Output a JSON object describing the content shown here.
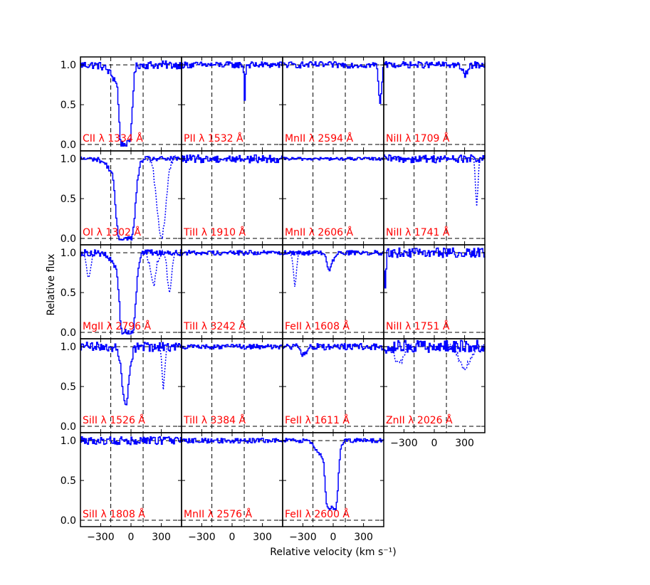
{
  "chart_data": {
    "type": "line",
    "grid": {
      "rows": 5,
      "cols": 4
    },
    "xlabel": "Relative velocity (km s⁻¹)",
    "ylabel": "Relative flux",
    "xlim": [
      -500,
      500
    ],
    "ylim": [
      -0.08,
      1.1
    ],
    "yticks": [
      0.0,
      0.5,
      1.0
    ],
    "ytick_labels": [
      "0.0",
      "0.5",
      "1.0"
    ],
    "xticks": [
      -300,
      0,
      300
    ],
    "xtick_labels": [
      "−300",
      "0",
      "300"
    ],
    "vlines": [
      -200,
      120
    ],
    "colors": {
      "spectrum": "#0000ff",
      "label": "#ff0000",
      "guide": "#000000"
    },
    "panels": [
      {
        "row": 0,
        "col": 0,
        "ion": "CII",
        "wave": "1334",
        "shape": "strong",
        "center": -60,
        "width": 40,
        "depth": 1.0,
        "noise": 0.05,
        "blend": []
      },
      {
        "row": 0,
        "col": 1,
        "ion": "PII",
        "wave": "1532",
        "shape": "narrow",
        "center": 120,
        "width": 8,
        "depth": 0.45,
        "noise": 0.04,
        "blend": []
      },
      {
        "row": 0,
        "col": 2,
        "ion": "MnII",
        "wave": "2594",
        "shape": "edge",
        "center": 460,
        "width": 20,
        "depth": 0.5,
        "noise": 0.04,
        "blend": []
      },
      {
        "row": 0,
        "col": 3,
        "ion": "NiII",
        "wave": "1709",
        "shape": "weak",
        "center": 300,
        "width": 40,
        "depth": 0.12,
        "noise": 0.04,
        "blend": []
      },
      {
        "row": 1,
        "col": 0,
        "ion": "OI",
        "wave": "1302",
        "shape": "strong",
        "center": -60,
        "width": 60,
        "depth": 1.0,
        "noise": 0.03,
        "blend": [
          [
            300,
            60,
            1.0
          ]
        ]
      },
      {
        "row": 1,
        "col": 1,
        "ion": "TiII",
        "wave": "1910",
        "shape": "none",
        "center": 0,
        "width": 0,
        "depth": 0.0,
        "noise": 0.05,
        "blend": []
      },
      {
        "row": 1,
        "col": 2,
        "ion": "MnII",
        "wave": "2606",
        "shape": "none",
        "center": 0,
        "width": 0,
        "depth": 0.0,
        "noise": 0.02,
        "blend": []
      },
      {
        "row": 1,
        "col": 3,
        "ion": "NiII",
        "wave": "1741",
        "shape": "none",
        "center": 0,
        "width": 0,
        "depth": 0.0,
        "noise": 0.05,
        "blend": [
          [
            420,
            15,
            0.6
          ]
        ]
      },
      {
        "row": 2,
        "col": 0,
        "ion": "MgII",
        "wave": "2796",
        "shape": "strong",
        "center": -40,
        "width": 50,
        "depth": 1.0,
        "noise": 0.04,
        "blend": [
          [
            -420,
            30,
            0.3
          ],
          [
            220,
            40,
            0.4
          ],
          [
            380,
            30,
            0.5
          ]
        ]
      },
      {
        "row": 2,
        "col": 1,
        "ion": "TiII",
        "wave": "3242",
        "shape": "none",
        "center": 0,
        "width": 0,
        "depth": 0.0,
        "noise": 0.03,
        "blend": []
      },
      {
        "row": 2,
        "col": 2,
        "ion": "FeII",
        "wave": "1608",
        "shape": "medium",
        "center": -40,
        "width": 40,
        "depth": 0.2,
        "noise": 0.03,
        "blend": [
          [
            -380,
            20,
            0.4
          ]
        ]
      },
      {
        "row": 2,
        "col": 3,
        "ion": "NiII",
        "wave": "1751",
        "shape": "edge-left",
        "center": -490,
        "width": 10,
        "depth": 0.5,
        "noise": 0.06,
        "blend": []
      },
      {
        "row": 3,
        "col": 0,
        "ion": "SiII",
        "wave": "1526",
        "shape": "medium",
        "center": -60,
        "width": 50,
        "depth": 0.7,
        "noise": 0.06,
        "blend": [
          [
            320,
            20,
            0.5
          ]
        ]
      },
      {
        "row": 3,
        "col": 1,
        "ion": "TiII",
        "wave": "3384",
        "shape": "none",
        "center": 0,
        "width": 0,
        "depth": 0.0,
        "noise": 0.03,
        "blend": []
      },
      {
        "row": 3,
        "col": 2,
        "ion": "FeII",
        "wave": "1611",
        "shape": "weak",
        "center": -300,
        "width": 40,
        "depth": 0.1,
        "noise": 0.04,
        "blend": []
      },
      {
        "row": 3,
        "col": 3,
        "ion": "ZnII",
        "wave": "2026",
        "shape": "none",
        "center": 0,
        "width": 0,
        "depth": 0.0,
        "noise": 0.08,
        "blend": [
          [
            -350,
            60,
            0.2
          ],
          [
            300,
            80,
            0.25
          ]
        ]
      },
      {
        "row": 4,
        "col": 0,
        "ion": "SiII",
        "wave": "1808",
        "shape": "none",
        "center": 0,
        "width": 0,
        "depth": 0.0,
        "noise": 0.05,
        "blend": []
      },
      {
        "row": 4,
        "col": 1,
        "ion": "MnII",
        "wave": "2576",
        "shape": "none",
        "center": 0,
        "width": 0,
        "depth": 0.0,
        "noise": 0.03,
        "blend": []
      },
      {
        "row": 4,
        "col": 2,
        "ion": "FeII",
        "wave": "2600",
        "shape": "strong",
        "center": -20,
        "width": 40,
        "depth": 0.85,
        "noise": 0.03,
        "blend": []
      }
    ]
  }
}
